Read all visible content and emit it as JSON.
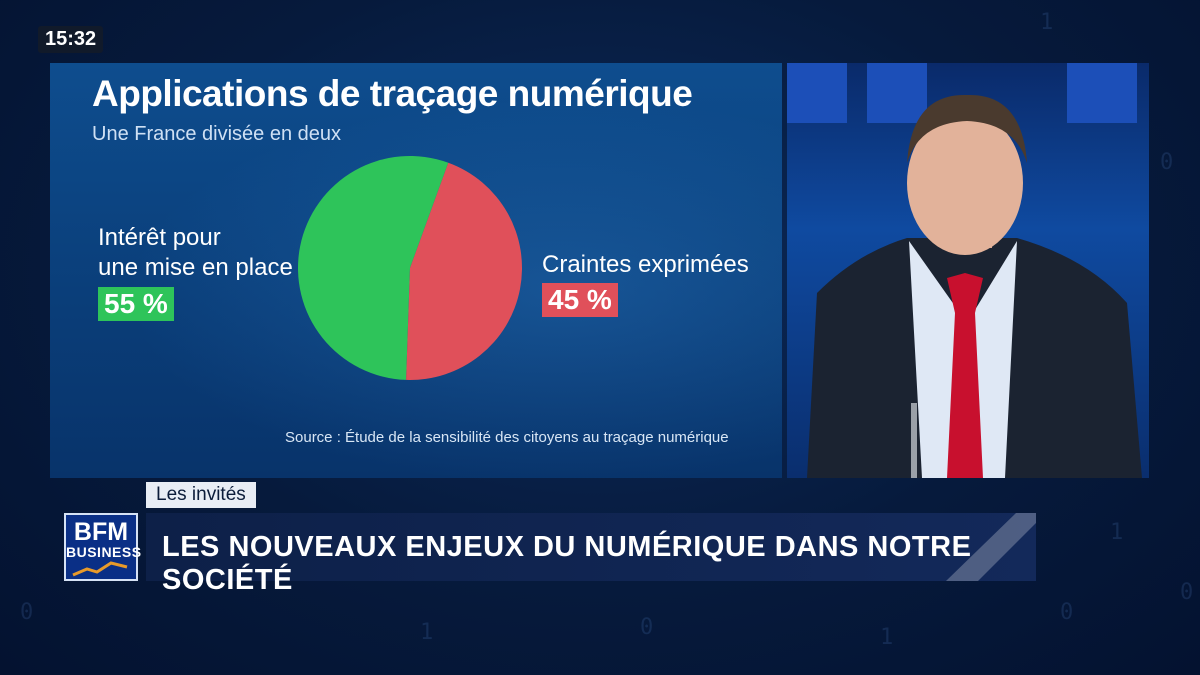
{
  "clock": "15:32",
  "chart_data": {
    "type": "pie",
    "title": "Applications de traçage numérique",
    "subtitle": "Une France divisée en deux",
    "series": [
      {
        "name": "Intérêt pour une mise en place",
        "value": 55,
        "value_label": "55 %",
        "color": "#2ec45a"
      },
      {
        "name": "Craintes exprimées",
        "value": 45,
        "value_label": "45 %",
        "color": "#e0505a"
      }
    ],
    "labels": {
      "left_line1": "Intérêt pour",
      "left_line2": "une mise en place",
      "right": "Craintes exprimées"
    },
    "source": "Source : Étude de la sensibilité des citoyens au traçage numérique"
  },
  "lower_third": {
    "tag": "Les invités",
    "headline": "LES NOUVEAUX ENJEUX DU NUMÉRIQUE DANS NOTRE SOCIÉTÉ",
    "logo_line1": "BFM",
    "logo_line2": "BUSINESS"
  },
  "colors": {
    "background": "#061a3c",
    "chart_panel": "#0e4d8e",
    "accent_green": "#2ec45a",
    "accent_red": "#e0505a"
  }
}
